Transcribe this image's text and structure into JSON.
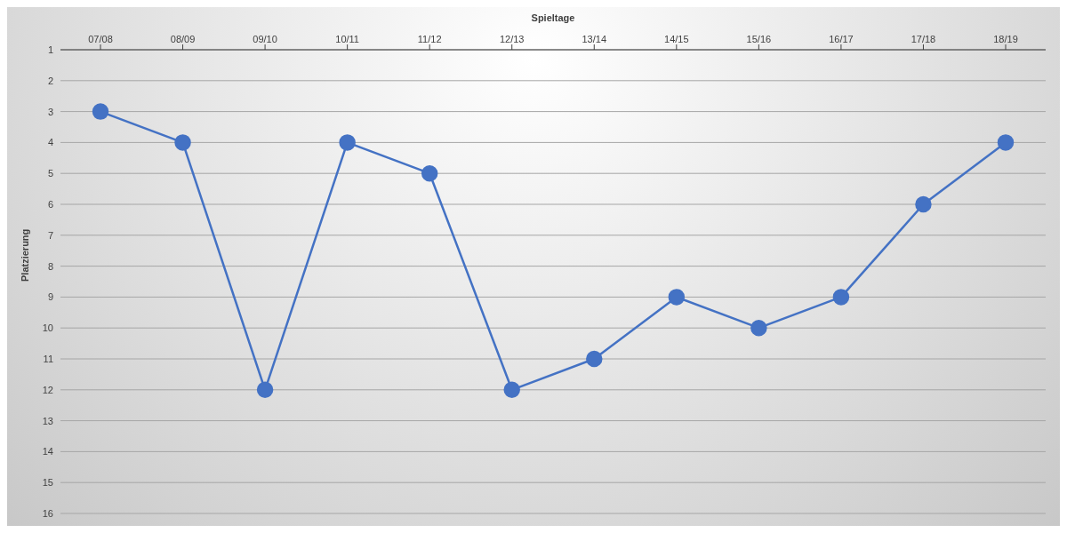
{
  "chart_data": {
    "type": "line",
    "xlabel": "Spieltage",
    "ylabel": "Platzierung",
    "categories": [
      "07/08",
      "08/09",
      "09/10",
      "10/11",
      "11/12",
      "12/13",
      "13/14",
      "14/15",
      "15/16",
      "16/17",
      "17/18",
      "18/19"
    ],
    "series": [
      {
        "color": "#4472c4",
        "values": [
          3,
          4,
          12,
          4,
          5,
          12,
          11,
          9,
          10,
          9,
          6,
          4
        ]
      }
    ],
    "ylim": [
      16,
      1
    ],
    "yticks": [
      1,
      2,
      3,
      4,
      5,
      6,
      7,
      8,
      9,
      10,
      11,
      12,
      13,
      14,
      15,
      16
    ],
    "grid": "y",
    "legend": false,
    "marker": "circle",
    "line_style": "solid"
  }
}
